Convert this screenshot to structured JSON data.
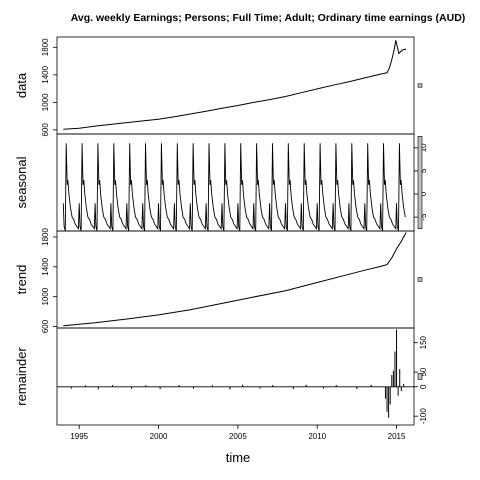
{
  "chart_data": {
    "type": "line",
    "title": "Avg. weekly Earnings; Persons; Full Time; Adult; Ordinary time earnings (AUD)",
    "xlabel": "time",
    "xlim": [
      1993.6,
      2016.1
    ],
    "x_ticks": [
      "1995",
      "2000",
      "2005",
      "2010",
      "2015"
    ],
    "x_tick_values": [
      1995,
      2000,
      2005,
      2010,
      2015
    ],
    "series_start": 1994.0,
    "series_end": 2015.6,
    "period": 1.0,
    "panels": [
      {
        "name": "data",
        "ylabel": "data",
        "ylim": [
          540,
          1950
        ],
        "y_ticks": [
          "600",
          "1000",
          "1400",
          "1800"
        ],
        "y_tick_values": [
          600,
          1000,
          1400,
          1800
        ],
        "scale_bar": 50,
        "points": [
          [
            1994.0,
            610
          ],
          [
            1995.0,
            625
          ],
          [
            1996.0,
            655
          ],
          [
            1997.0,
            680
          ],
          [
            1998.0,
            705
          ],
          [
            1999.0,
            730
          ],
          [
            2000.0,
            755
          ],
          [
            2001.0,
            790
          ],
          [
            2002.0,
            830
          ],
          [
            2003.0,
            870
          ],
          [
            2004.0,
            915
          ],
          [
            2005.0,
            955
          ],
          [
            2006.0,
            1000
          ],
          [
            2007.0,
            1040
          ],
          [
            2008.0,
            1085
          ],
          [
            2009.0,
            1140
          ],
          [
            2010.0,
            1195
          ],
          [
            2011.0,
            1250
          ],
          [
            2012.0,
            1300
          ],
          [
            2013.0,
            1355
          ],
          [
            2014.0,
            1410
          ],
          [
            2014.4,
            1430
          ],
          [
            2014.55,
            1500
          ],
          [
            2014.7,
            1620
          ],
          [
            2014.85,
            1770
          ],
          [
            2014.95,
            1900
          ],
          [
            2015.15,
            1710
          ],
          [
            2015.35,
            1760
          ],
          [
            2015.6,
            1775
          ]
        ]
      },
      {
        "name": "seasonal",
        "ylabel": "seasonal",
        "ylim": [
          -8,
          13
        ],
        "y_ticks": [
          "-5",
          "0",
          "5",
          "10"
        ],
        "y_tick_values": [
          -5,
          0,
          5,
          10
        ],
        "scale_bar": 20,
        "pattern": [
          [
            0.0,
            -2
          ],
          [
            0.05,
            -7
          ],
          [
            0.12,
            -8
          ],
          [
            0.18,
            11
          ],
          [
            0.24,
            2
          ],
          [
            0.29,
            3
          ],
          [
            0.35,
            0
          ],
          [
            0.45,
            -3
          ],
          [
            0.55,
            -5
          ],
          [
            0.65,
            -5.5
          ],
          [
            0.75,
            -6.5
          ],
          [
            0.85,
            -7
          ],
          [
            0.95,
            -7.5
          ]
        ]
      },
      {
        "name": "trend",
        "ylabel": "trend",
        "ylim": [
          580,
          1880
        ],
        "y_ticks": [
          "600",
          "1000",
          "1400",
          "1800"
        ],
        "y_tick_values": [
          600,
          1000,
          1400,
          1800
        ],
        "scale_bar": 50,
        "points": [
          [
            1994.0,
            610
          ],
          [
            1996.0,
            650
          ],
          [
            1998.0,
            700
          ],
          [
            2000.0,
            755
          ],
          [
            2002.0,
            825
          ],
          [
            2004.0,
            910
          ],
          [
            2006.0,
            995
          ],
          [
            2008.0,
            1080
          ],
          [
            2010.0,
            1190
          ],
          [
            2012.0,
            1300
          ],
          [
            2013.0,
            1355
          ],
          [
            2014.0,
            1405
          ],
          [
            2014.4,
            1430
          ],
          [
            2014.7,
            1520
          ],
          [
            2015.0,
            1640
          ],
          [
            2015.3,
            1740
          ],
          [
            2015.6,
            1860
          ]
        ]
      },
      {
        "name": "remainder",
        "ylabel": "remainder",
        "ylim": [
          -130,
          200
        ],
        "y_ticks": [
          "-100",
          "0",
          "50",
          "150"
        ],
        "y_tick_values": [
          -100,
          0,
          50,
          150
        ],
        "scale_bar": 20,
        "bars": [
          [
            1994.5,
            -6
          ],
          [
            1995.4,
            5
          ],
          [
            1996.2,
            -9
          ],
          [
            1997.1,
            6
          ],
          [
            1998.3,
            -7
          ],
          [
            1999.2,
            5
          ],
          [
            2000.1,
            -8
          ],
          [
            2001.3,
            6
          ],
          [
            2002.2,
            -7
          ],
          [
            2003.4,
            5
          ],
          [
            2004.5,
            -9
          ],
          [
            2005.3,
            7
          ],
          [
            2006.4,
            -6
          ],
          [
            2007.2,
            6
          ],
          [
            2008.5,
            -8
          ],
          [
            2009.3,
            7
          ],
          [
            2010.4,
            -6
          ],
          [
            2011.2,
            6
          ],
          [
            2012.5,
            -8
          ],
          [
            2013.4,
            7
          ],
          [
            2014.3,
            -40
          ],
          [
            2014.4,
            -85
          ],
          [
            2014.5,
            -105
          ],
          [
            2014.6,
            -60
          ],
          [
            2014.7,
            40
          ],
          [
            2014.8,
            55
          ],
          [
            2014.9,
            120
          ],
          [
            2015.0,
            195
          ],
          [
            2015.1,
            -30
          ],
          [
            2015.2,
            60
          ],
          [
            2015.3,
            -15
          ],
          [
            2015.45,
            10
          ]
        ]
      }
    ]
  }
}
